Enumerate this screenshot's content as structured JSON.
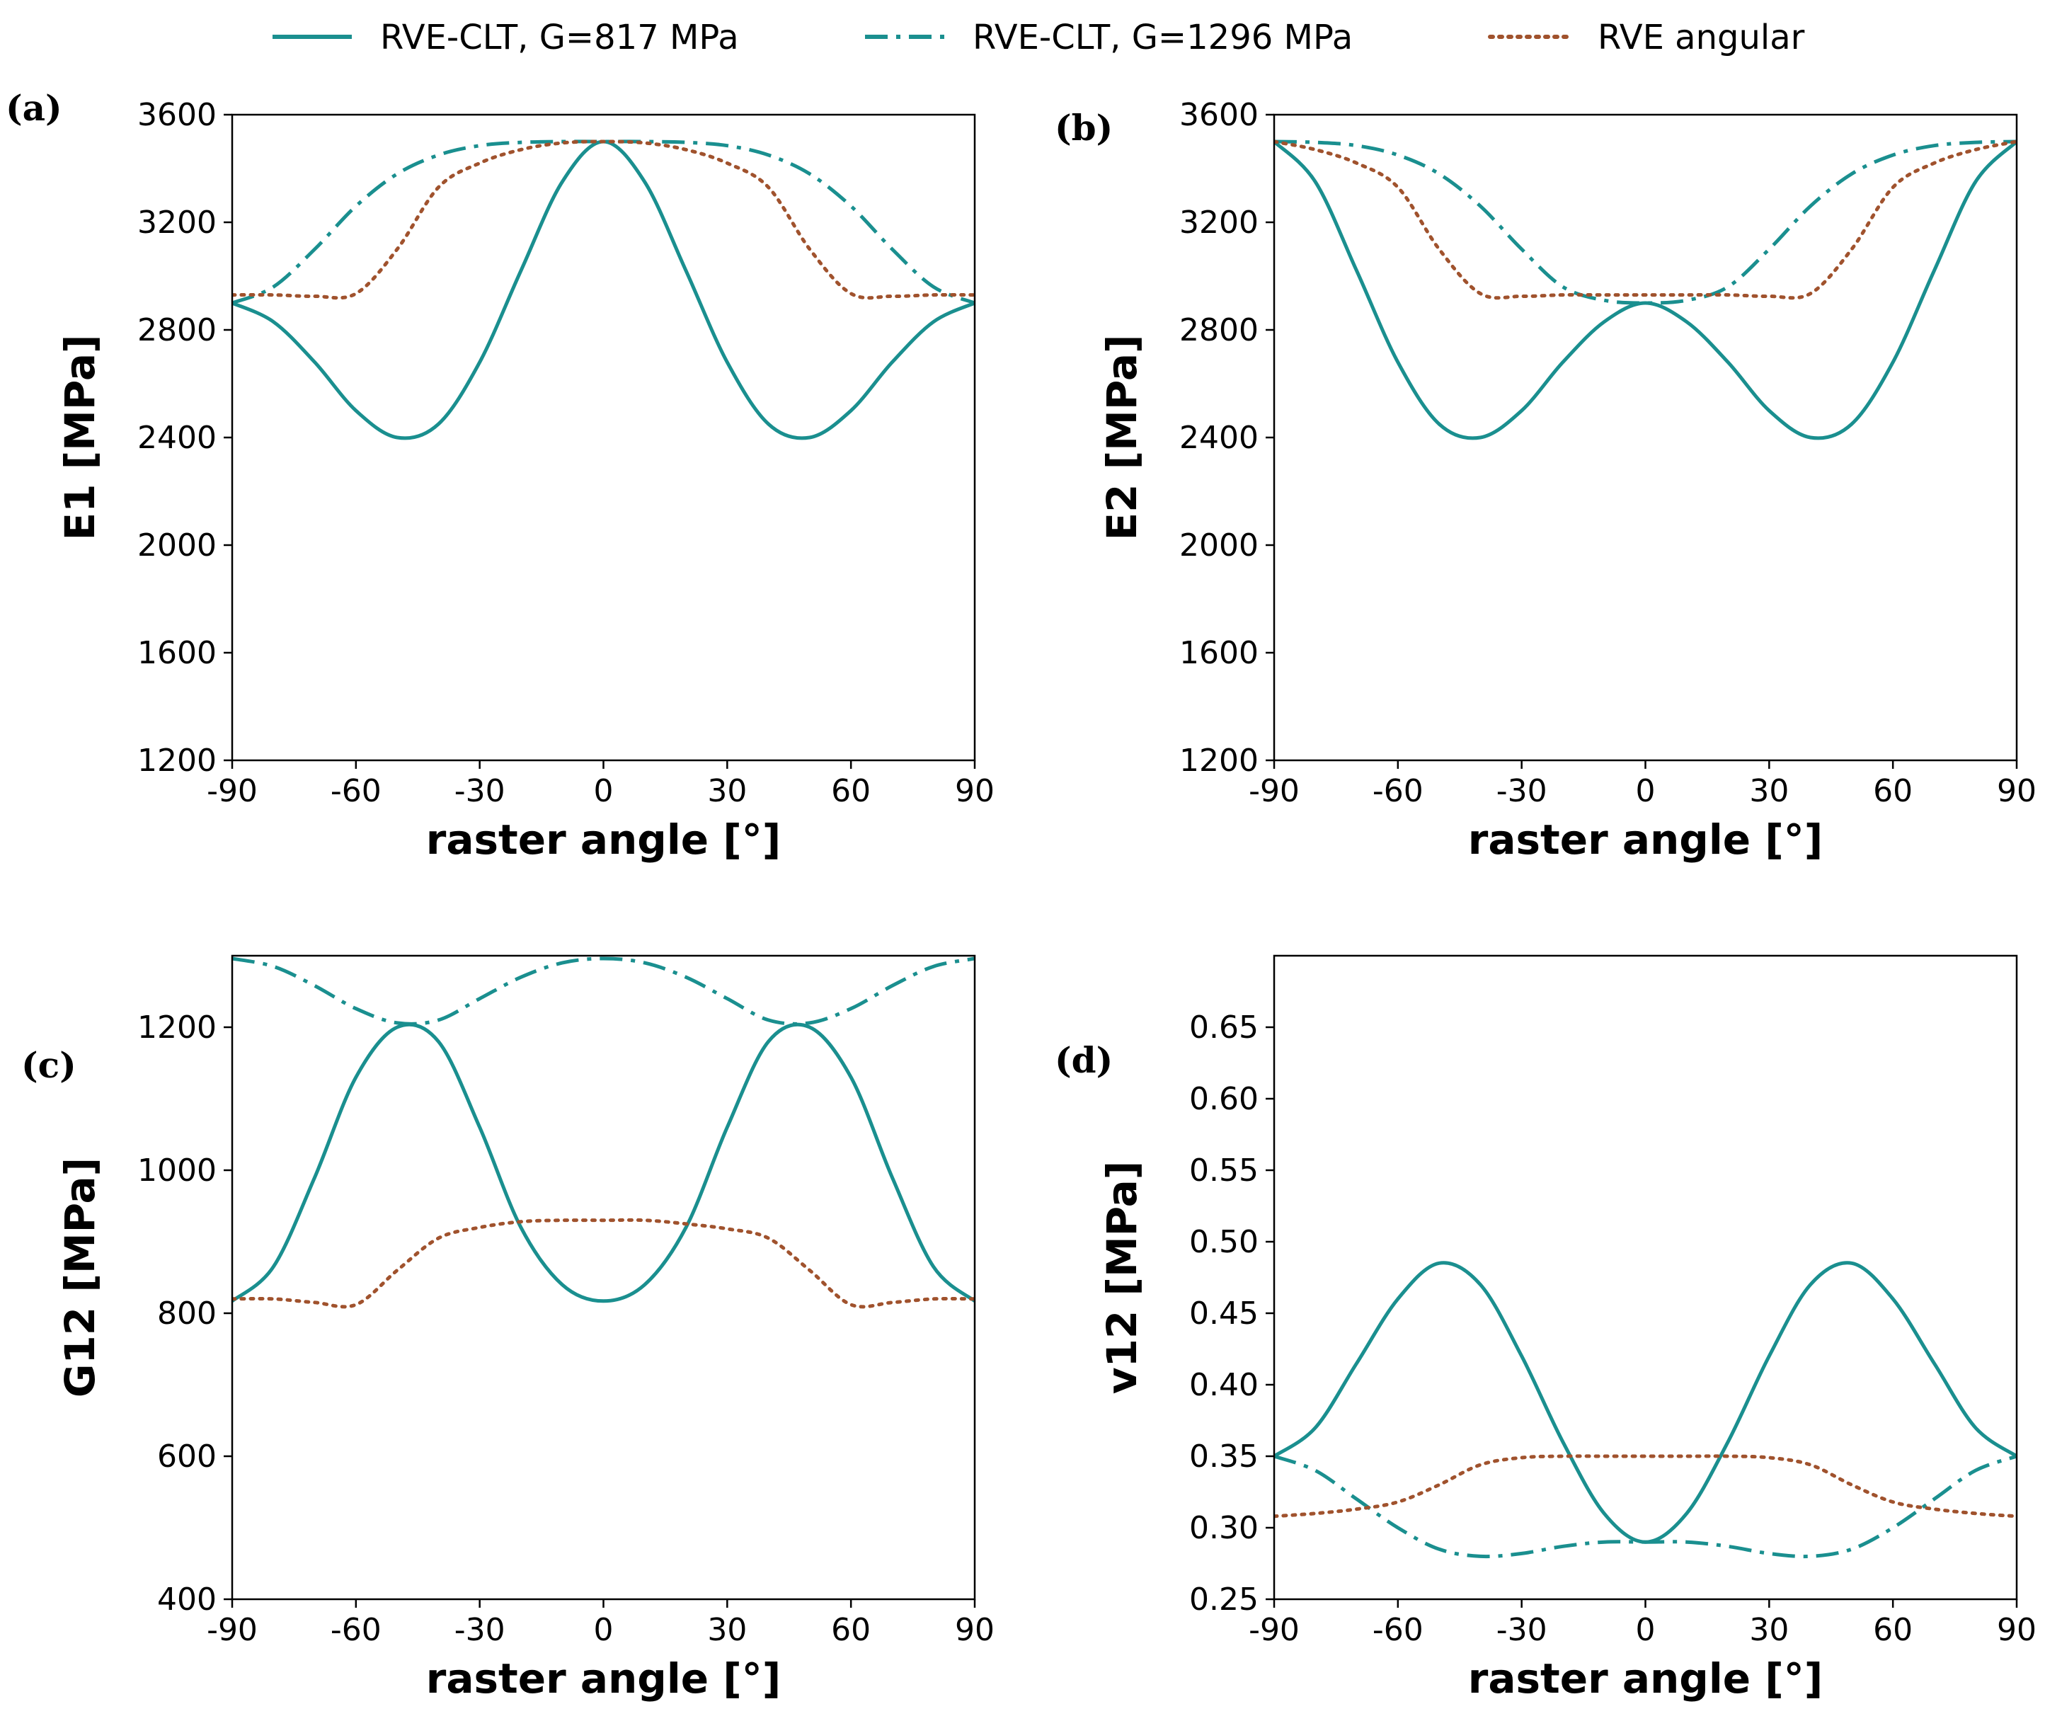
{
  "legend": {
    "entries": [
      {
        "label": "RVE-CLT, G=817 MPa",
        "style": "solid",
        "color": "#1a8f8f"
      },
      {
        "label": "RVE-CLT, G=1296 MPa",
        "style": "dashdot",
        "color": "#1a8f8f"
      },
      {
        "label": "RVE angular",
        "style": "dotted",
        "color": "#a0522d"
      }
    ]
  },
  "chart_data": [
    {
      "id": "a",
      "panel_label": "(a)",
      "type": "line",
      "xlabel": "raster angle [°]",
      "ylabel": "E1 [MPa]",
      "xlim": [
        -90,
        90
      ],
      "ylim": [
        1200,
        3600
      ],
      "xticks": [
        -90,
        -60,
        -30,
        0,
        30,
        60,
        90
      ],
      "yticks": [
        1200,
        1600,
        2000,
        2400,
        2800,
        3200,
        3600
      ],
      "x": [
        -90,
        -80,
        -70,
        -60,
        -50,
        -40,
        -30,
        -20,
        -10,
        0,
        10,
        20,
        30,
        40,
        50,
        60,
        70,
        80,
        90
      ],
      "series": [
        {
          "name": "RVE-CLT, G=817 MPa",
          "values": [
            2900,
            2830,
            2680,
            2500,
            2400,
            2450,
            2680,
            3020,
            3350,
            3500,
            3350,
            3020,
            2680,
            2450,
            2400,
            2500,
            2680,
            2830,
            2900
          ]
        },
        {
          "name": "RVE-CLT, G=1296 MPa",
          "values": [
            2900,
            2960,
            3100,
            3260,
            3380,
            3450,
            3485,
            3497,
            3500,
            3500,
            3500,
            3497,
            3485,
            3450,
            3380,
            3260,
            3100,
            2960,
            2900
          ]
        },
        {
          "name": "RVE angular",
          "values": [
            2930,
            2930,
            2925,
            2935,
            3100,
            3330,
            3420,
            3470,
            3495,
            3500,
            3495,
            3470,
            3420,
            3330,
            3100,
            2935,
            2925,
            2930,
            2930
          ]
        }
      ]
    },
    {
      "id": "b",
      "panel_label": "(b)",
      "type": "line",
      "xlabel": "raster angle [°]",
      "ylabel": "E2 [MPa]",
      "xlim": [
        -90,
        90
      ],
      "ylim": [
        1200,
        3600
      ],
      "xticks": [
        -90,
        -60,
        -30,
        0,
        30,
        60,
        90
      ],
      "yticks": [
        1200,
        1600,
        2000,
        2400,
        2800,
        3200,
        3600
      ],
      "x": [
        -90,
        -80,
        -70,
        -60,
        -50,
        -40,
        -30,
        -20,
        -10,
        0,
        10,
        20,
        30,
        40,
        50,
        60,
        70,
        80,
        90
      ],
      "series": [
        {
          "name": "RVE-CLT, G=817 MPa",
          "values": [
            3500,
            3350,
            3020,
            2680,
            2450,
            2400,
            2500,
            2680,
            2830,
            2900,
            2830,
            2680,
            2500,
            2400,
            2450,
            2680,
            3020,
            3350,
            3500
          ]
        },
        {
          "name": "RVE-CLT, G=1296 MPa",
          "values": [
            3500,
            3497,
            3485,
            3450,
            3380,
            3260,
            3100,
            2960,
            2910,
            2900,
            2910,
            2960,
            3100,
            3260,
            3380,
            3450,
            3485,
            3497,
            3500
          ]
        },
        {
          "name": "RVE angular",
          "values": [
            3500,
            3470,
            3420,
            3330,
            3100,
            2935,
            2925,
            2930,
            2930,
            2930,
            2930,
            2930,
            2925,
            2935,
            3100,
            3330,
            3420,
            3470,
            3500
          ]
        }
      ]
    },
    {
      "id": "c",
      "panel_label": "(c)",
      "type": "line",
      "xlabel": "raster angle [°]",
      "ylabel": "G12 [MPa]",
      "xlim": [
        -90,
        90
      ],
      "ylim": [
        400,
        1300
      ],
      "xticks": [
        -90,
        -60,
        -30,
        0,
        30,
        60,
        90
      ],
      "yticks": [
        400,
        600,
        800,
        1000,
        1200
      ],
      "x": [
        -90,
        -80,
        -70,
        -60,
        -50,
        -40,
        -30,
        -20,
        -10,
        0,
        10,
        20,
        30,
        40,
        50,
        60,
        70,
        80,
        90
      ],
      "series": [
        {
          "name": "RVE-CLT, G=817 MPa",
          "values": [
            817,
            865,
            990,
            1130,
            1200,
            1180,
            1060,
            920,
            840,
            817,
            840,
            920,
            1060,
            1180,
            1200,
            1130,
            990,
            865,
            817
          ]
        },
        {
          "name": "RVE-CLT, G=1296 MPa",
          "values": [
            1296,
            1285,
            1258,
            1226,
            1206,
            1210,
            1240,
            1270,
            1290,
            1296,
            1290,
            1270,
            1240,
            1210,
            1206,
            1226,
            1258,
            1285,
            1296
          ]
        },
        {
          "name": "RVE angular",
          "values": [
            820,
            820,
            815,
            812,
            860,
            905,
            920,
            928,
            930,
            930,
            930,
            925,
            918,
            905,
            860,
            812,
            815,
            820,
            820
          ]
        }
      ]
    },
    {
      "id": "d",
      "panel_label": "(d)",
      "type": "line",
      "xlabel": "raster angle [°]",
      "ylabel": "v12 [MPa]",
      "xlim": [
        -90,
        90
      ],
      "ylim": [
        0.25,
        0.7
      ],
      "xticks": [
        -90,
        -60,
        -30,
        0,
        30,
        60,
        90
      ],
      "yticks": [
        0.25,
        0.3,
        0.35,
        0.4,
        0.45,
        0.5,
        0.55,
        0.6,
        0.65
      ],
      "ytick_labels": [
        "0.25",
        "0.30",
        "0.35",
        "0.40",
        "0.45",
        "0.50",
        "0.55",
        "0.60",
        "0.65"
      ],
      "x": [
        -90,
        -80,
        -70,
        -60,
        -50,
        -40,
        -30,
        -20,
        -10,
        0,
        10,
        20,
        30,
        40,
        50,
        60,
        70,
        80,
        90
      ],
      "series": [
        {
          "name": "RVE-CLT, G=817 MPa",
          "values": [
            0.35,
            0.37,
            0.415,
            0.46,
            0.485,
            0.47,
            0.42,
            0.36,
            0.31,
            0.29,
            0.31,
            0.36,
            0.42,
            0.47,
            0.485,
            0.46,
            0.415,
            0.37,
            0.35
          ]
        },
        {
          "name": "RVE-CLT, G=1296 MPa",
          "values": [
            0.35,
            0.34,
            0.32,
            0.3,
            0.285,
            0.28,
            0.282,
            0.287,
            0.29,
            0.29,
            0.29,
            0.287,
            0.282,
            0.28,
            0.285,
            0.3,
            0.32,
            0.34,
            0.35
          ]
        },
        {
          "name": "RVE angular",
          "values": [
            0.308,
            0.31,
            0.313,
            0.318,
            0.33,
            0.344,
            0.349,
            0.35,
            0.35,
            0.35,
            0.35,
            0.35,
            0.349,
            0.344,
            0.33,
            0.318,
            0.313,
            0.31,
            0.308
          ]
        }
      ]
    }
  ]
}
